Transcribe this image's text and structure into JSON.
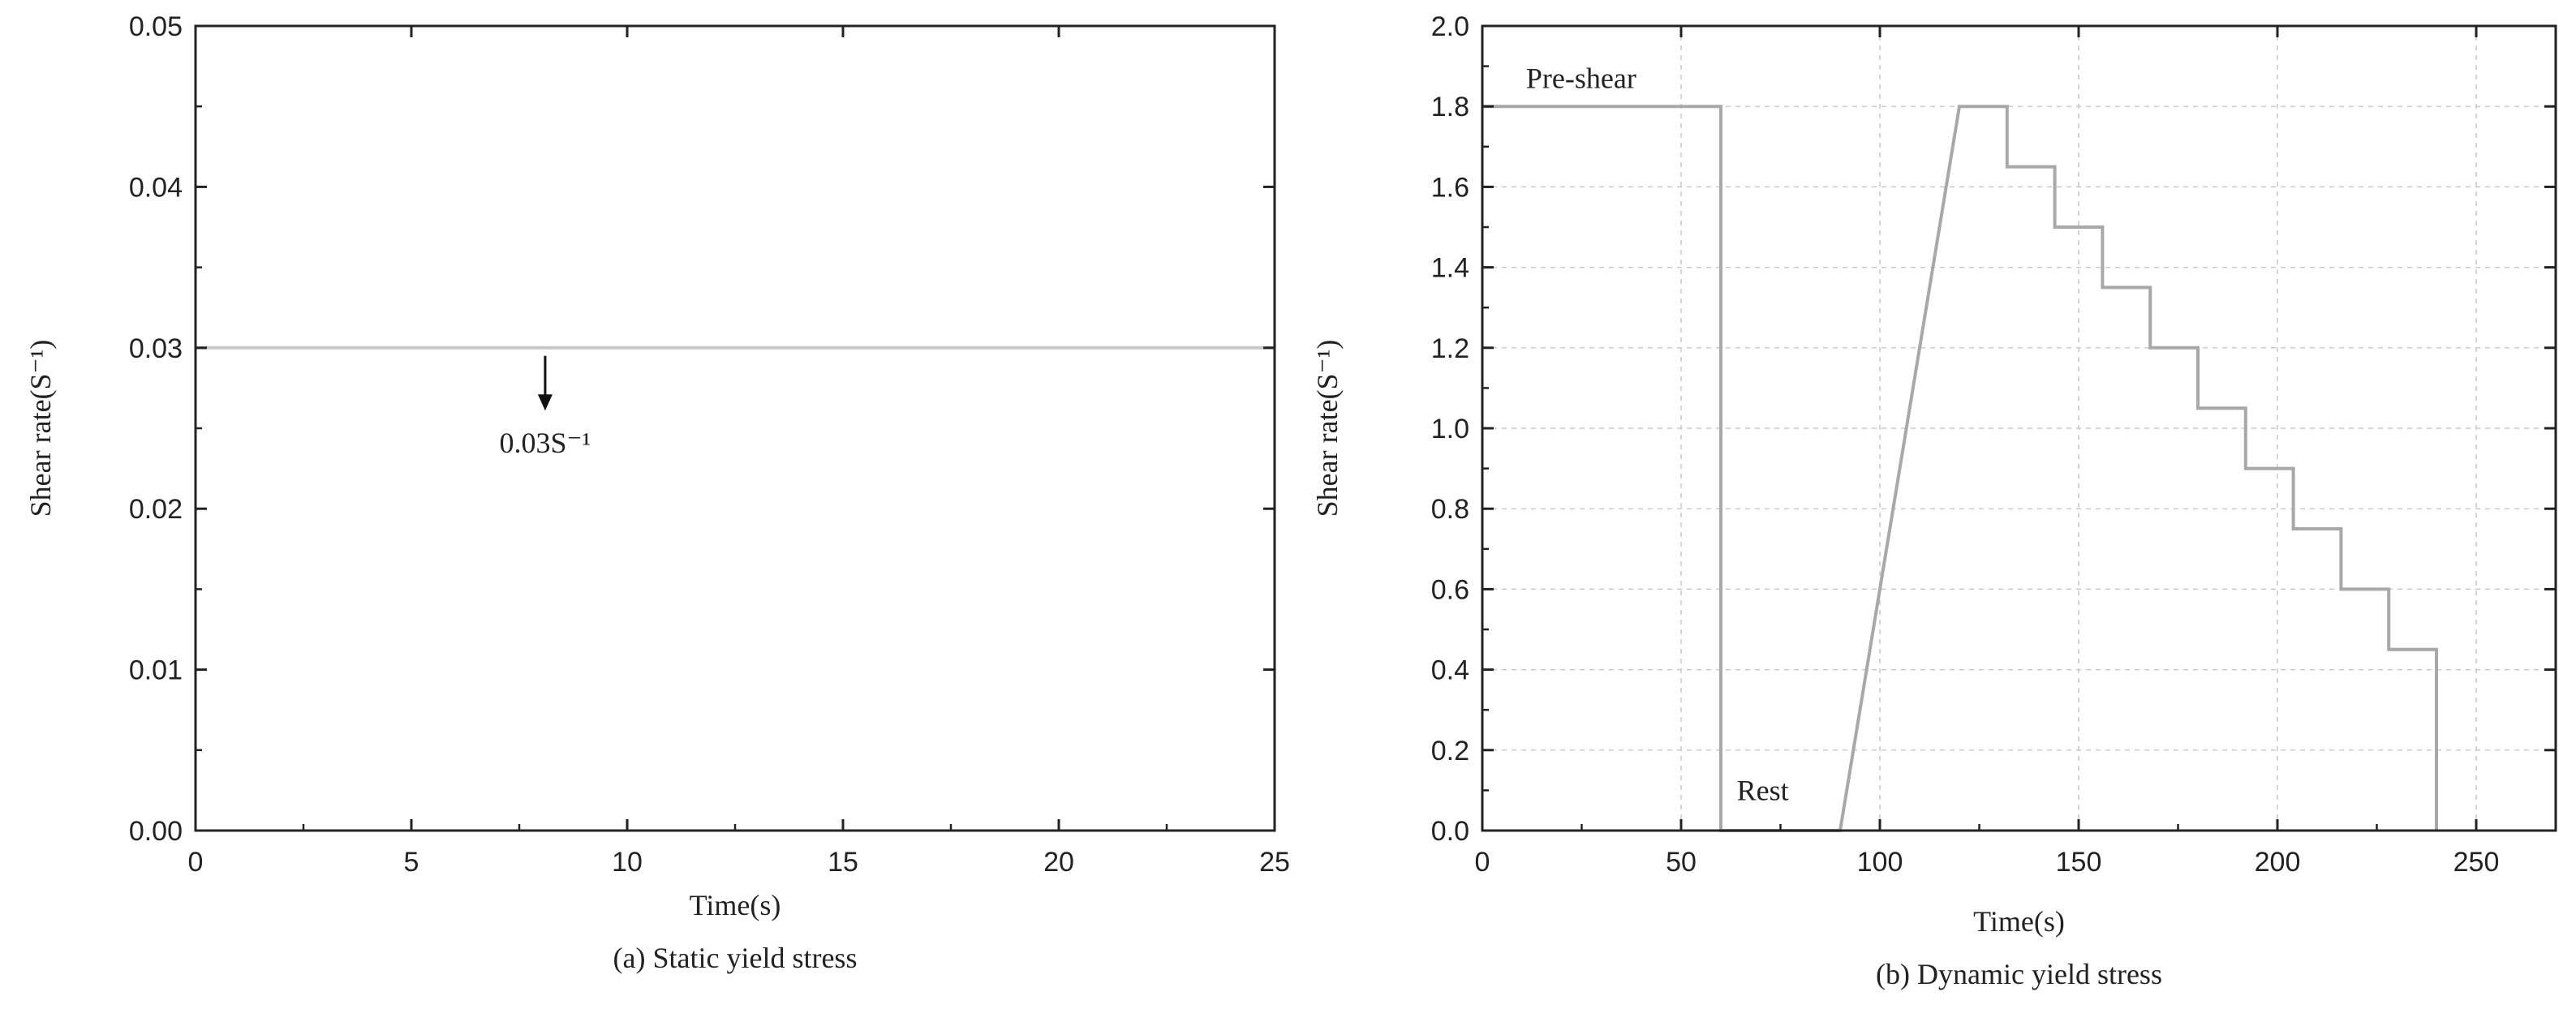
{
  "chart_data": [
    {
      "type": "line",
      "caption": "(a) Static yield stress",
      "xlabel": "Time(s)",
      "ylabel": "Shear rate(S⁻¹)",
      "xlim": [
        0,
        25
      ],
      "ylim": [
        0,
        0.05
      ],
      "xticks": [
        0,
        5,
        10,
        15,
        20,
        25
      ],
      "xtick_labels": [
        "0",
        "5",
        "10",
        "15",
        "20",
        "25"
      ],
      "yticks": [
        0,
        0.01,
        0.02,
        0.03,
        0.04,
        0.05
      ],
      "ytick_labels": [
        "0.00",
        "0.01",
        "0.02",
        "0.03",
        "0.04",
        "0.05"
      ],
      "grid": false,
      "line_color": "#c8c8c8",
      "series": [
        {
          "x": [
            0,
            25
          ],
          "y": [
            0.03,
            0.03
          ]
        }
      ],
      "annotations": [
        {
          "text": "0.03S⁻¹",
          "x": 8.1,
          "y": 0.0235,
          "arrow_from": [
            8.1,
            0.0295
          ],
          "arrow_to": [
            8.1,
            0.0263
          ]
        }
      ]
    },
    {
      "type": "line",
      "caption": "(b) Dynamic yield stress",
      "xlabel": "Time(s)",
      "ylabel": "Shear rate(S⁻¹)",
      "xlim": [
        0,
        270
      ],
      "ylim": [
        0,
        2.0
      ],
      "xticks": [
        0,
        50,
        100,
        150,
        200,
        250
      ],
      "xtick_labels": [
        "0",
        "50",
        "100",
        "150",
        "200",
        "250"
      ],
      "yticks": [
        0,
        0.2,
        0.4,
        0.6,
        0.8,
        1.0,
        1.2,
        1.4,
        1.6,
        1.8,
        2.0
      ],
      "ytick_labels": [
        "0.0",
        "0.2",
        "0.4",
        "0.6",
        "0.8",
        "1.0",
        "1.2",
        "1.4",
        "1.6",
        "1.8",
        "2.0"
      ],
      "grid": true,
      "line_color": "#a8a8a8",
      "series": [
        {
          "x": [
            0,
            60,
            60,
            90,
            120,
            132,
            132,
            144,
            144,
            156,
            156,
            168,
            168,
            180,
            180,
            192,
            192,
            204,
            204,
            216,
            216,
            228,
            228,
            240,
            240
          ],
          "y": [
            1.8,
            1.8,
            0.0,
            0.0,
            1.8,
            1.8,
            1.65,
            1.65,
            1.5,
            1.5,
            1.35,
            1.35,
            1.2,
            1.2,
            1.05,
            1.05,
            0.9,
            0.9,
            0.75,
            0.75,
            0.6,
            0.6,
            0.45,
            0.45,
            0.0
          ]
        }
      ],
      "annotations": [
        {
          "text": "Pre-shear",
          "x": 11,
          "y": 1.87
        },
        {
          "text": "Rest",
          "x": 64,
          "y": 0.1
        }
      ]
    }
  ]
}
